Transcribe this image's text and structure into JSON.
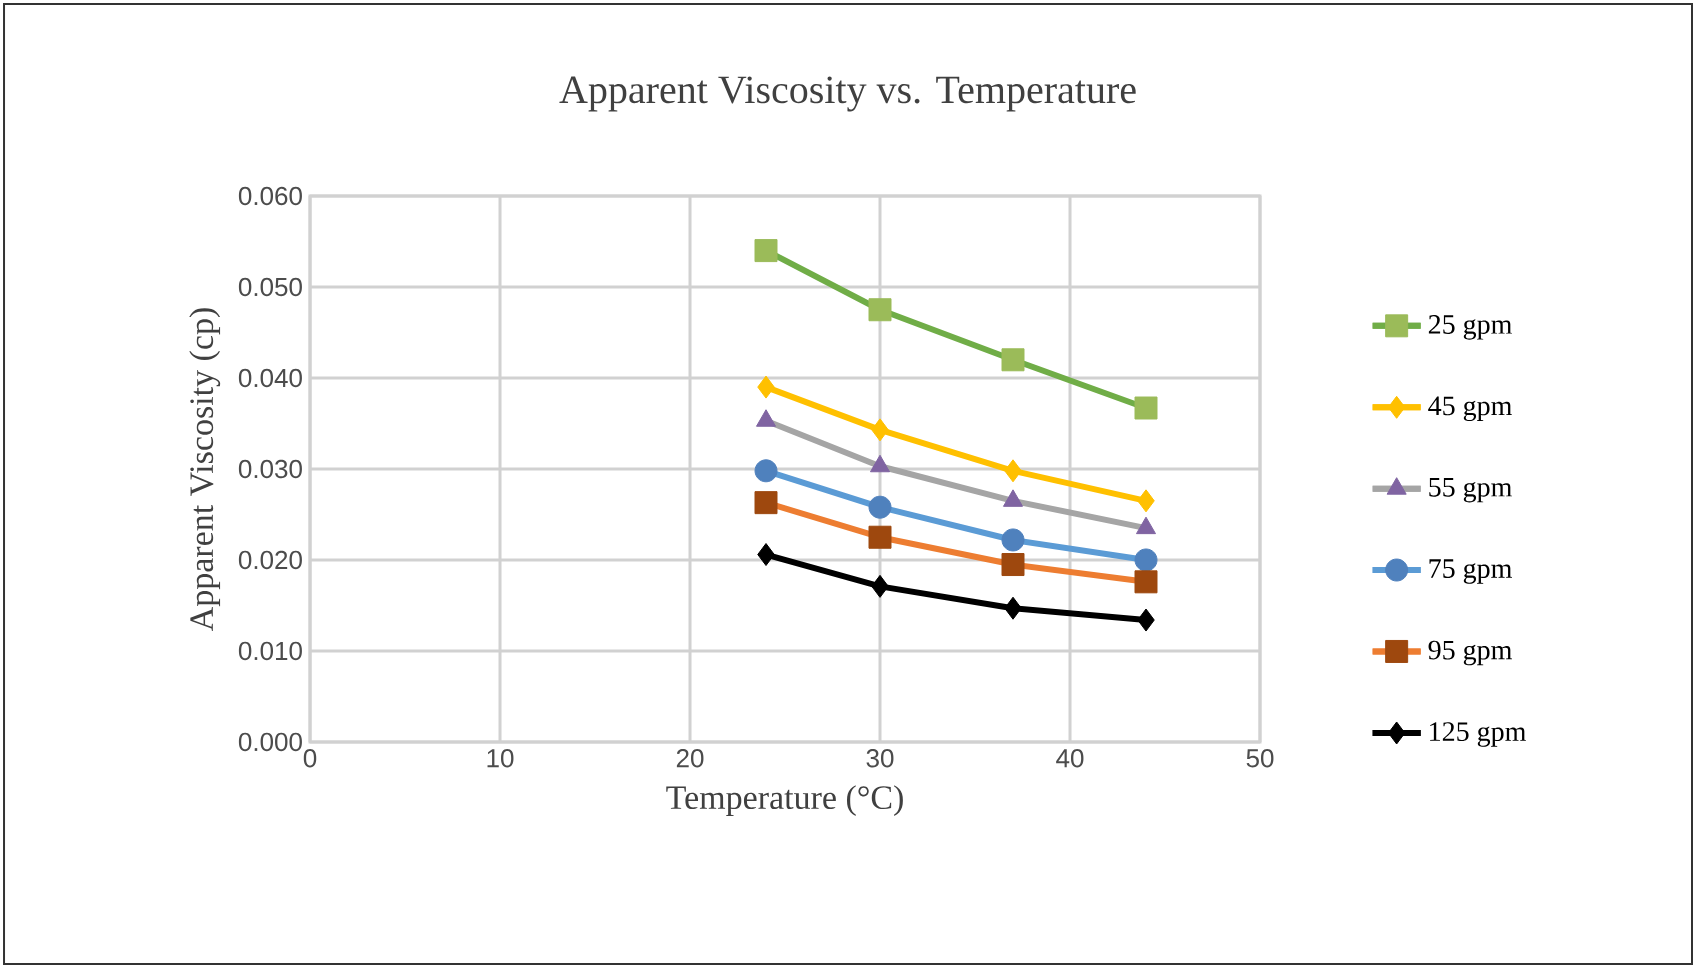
{
  "chart_data": {
    "type": "line",
    "title": "Apparent Viscosity vs. Temperature",
    "xlabel": "Temperature (°C)",
    "ylabel": "Apparent Viscosity (cp)",
    "x": [
      24,
      30,
      37,
      44
    ],
    "series": [
      {
        "name": "25 gpm",
        "color": "#70ad47",
        "marker": "square",
        "values": [
          0.054,
          0.0475,
          0.042,
          0.0367
        ]
      },
      {
        "name": "45 gpm",
        "color": "#ffc000",
        "marker": "diamond",
        "values": [
          0.039,
          0.0343,
          0.0298,
          0.0265
        ]
      },
      {
        "name": "55 gpm",
        "color": "#a5a5a5",
        "marker": "triangle",
        "values": [
          0.0353,
          0.0303,
          0.0265,
          0.0235
        ]
      },
      {
        "name": "75 gpm",
        "color": "#5b9bd5",
        "marker": "circle",
        "values": [
          0.0298,
          0.0258,
          0.0222,
          0.02
        ]
      },
      {
        "name": "95 gpm",
        "color": "#ed7d31",
        "marker": "square",
        "values": [
          0.0263,
          0.0225,
          0.0195,
          0.0176
        ]
      },
      {
        "name": "125 gpm",
        "color": "#000000",
        "marker": "diamond",
        "values": [
          0.0206,
          0.0171,
          0.0147,
          0.0134
        ]
      }
    ],
    "xlim": [
      0,
      50
    ],
    "xticks": [
      0,
      10,
      20,
      30,
      40,
      50
    ],
    "ylim": [
      0,
      0.06
    ],
    "yticks": [
      {
        "value": 0,
        "label": "0.000"
      },
      {
        "value": 0.01,
        "label": "0.010"
      },
      {
        "value": 0.02,
        "label": "0.020"
      },
      {
        "value": 0.03,
        "label": "0.030"
      },
      {
        "value": 0.04,
        "label": "0.040"
      },
      {
        "value": 0.05,
        "label": "0.050"
      },
      {
        "value": 0.06,
        "label": "0.060"
      }
    ],
    "grid": true,
    "legend": "right",
    "line_style": "solid"
  }
}
